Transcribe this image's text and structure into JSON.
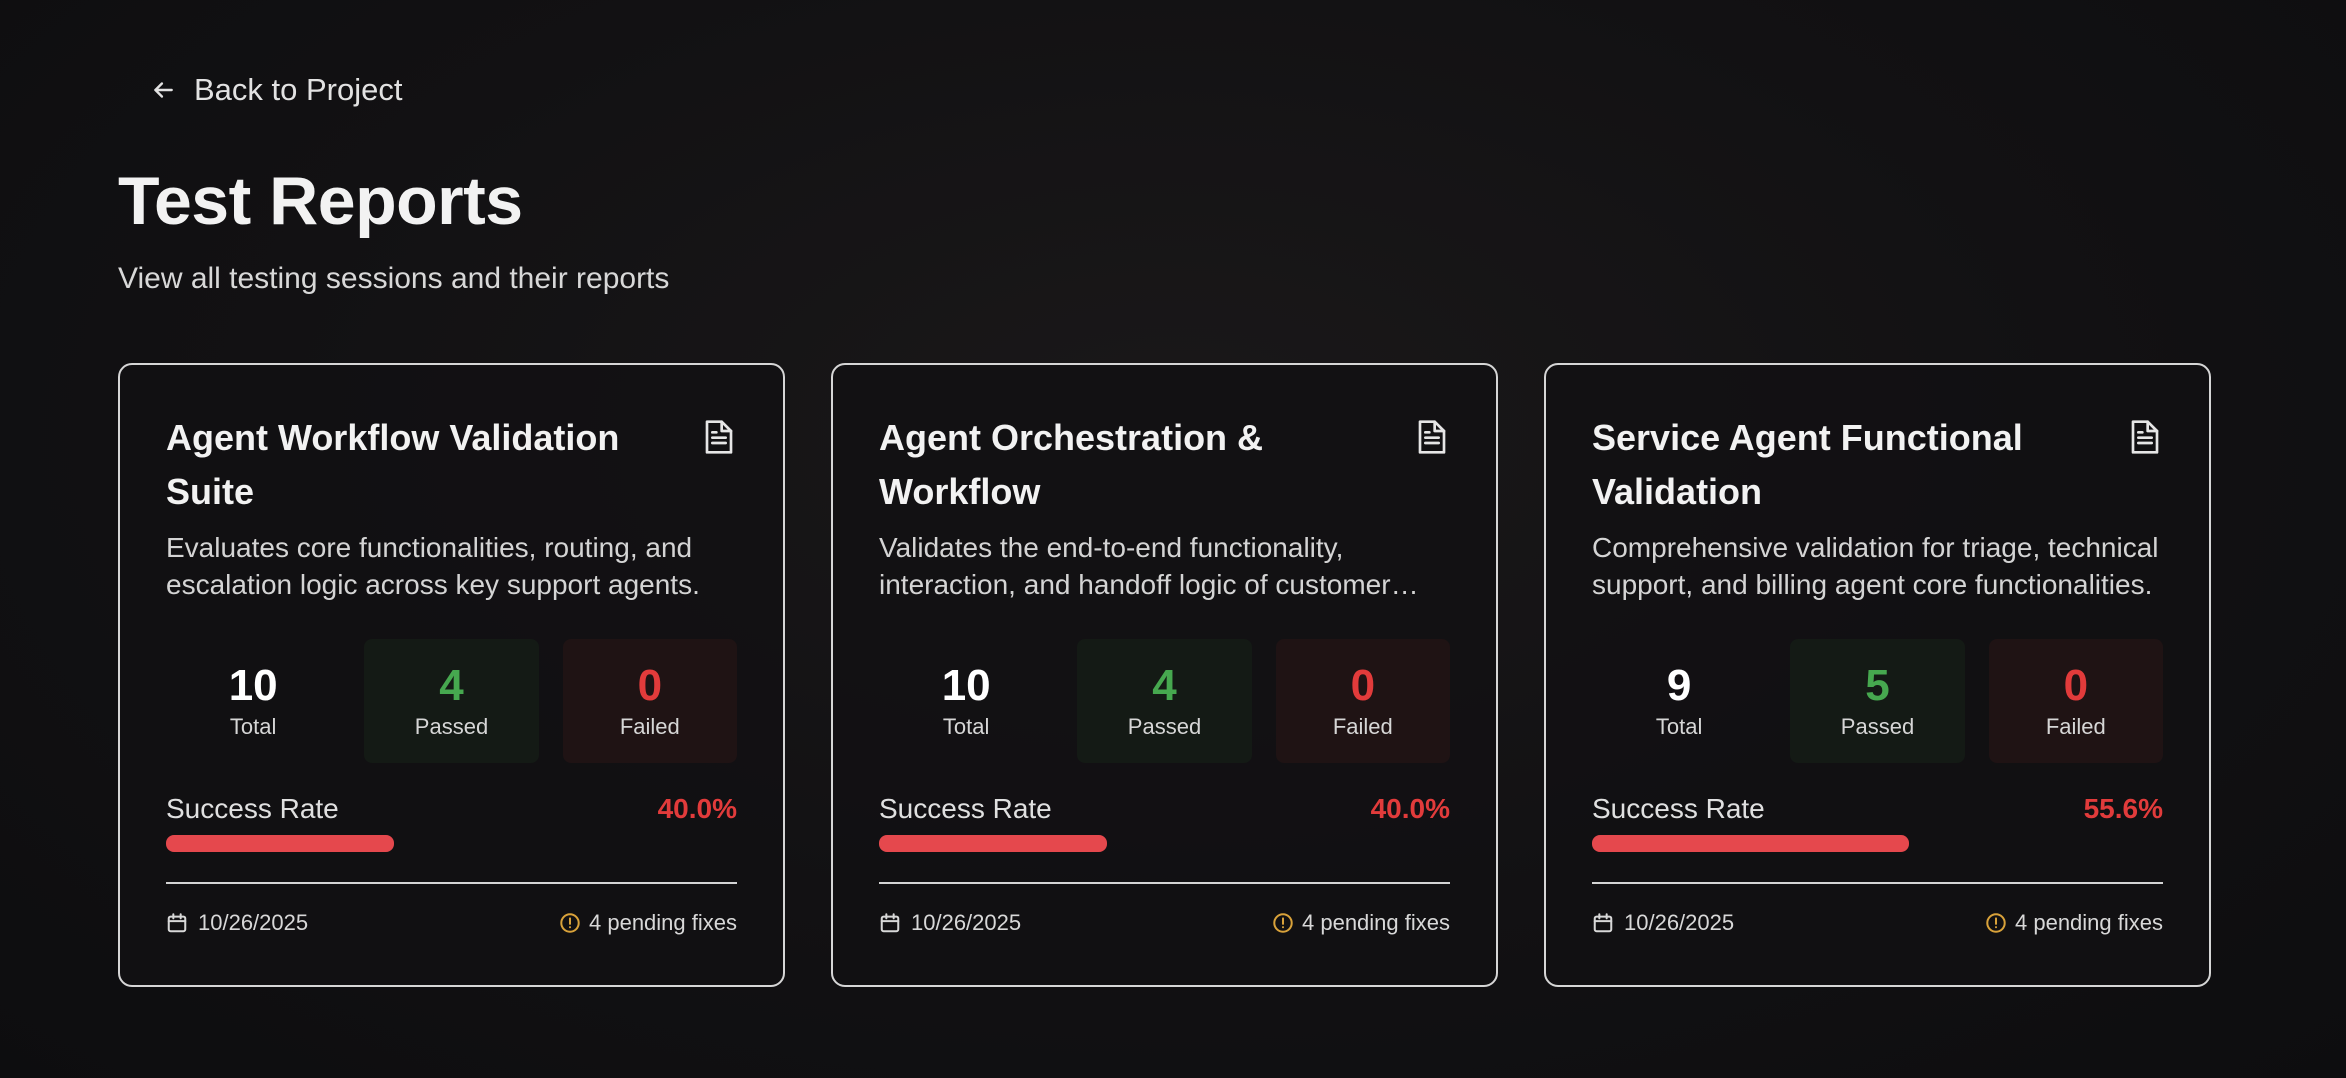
{
  "header": {
    "back_label": "Back to Project",
    "title": "Test Reports",
    "subtitle": "View all testing sessions and their reports"
  },
  "labels": {
    "total": "Total",
    "passed": "Passed",
    "failed": "Failed",
    "success_rate": "Success Rate"
  },
  "colors": {
    "passed": "#46a84f",
    "failed": "#e23b3b",
    "progress": "#e5484d",
    "pending_icon": "#d9a23a"
  },
  "icons": {
    "back": "arrow-left-icon",
    "report": "document-icon",
    "date": "calendar-icon",
    "pending": "alert-circle-icon"
  },
  "reports": [
    {
      "title": "Agent Workflow Validation Suite",
      "description": "Evaluates core functionalities, routing, and escalation logic across key support agents.",
      "total": "10",
      "passed": "4",
      "failed": "0",
      "success_rate": "40.0%",
      "success_fraction": 0.4,
      "date": "10/26/2025",
      "pending": "4 pending fixes"
    },
    {
      "title": "Agent Orchestration & Workflow",
      "description": "Validates the end-to-end functionality, interaction, and handoff logic of customer support agents.",
      "total": "10",
      "passed": "4",
      "failed": "0",
      "success_rate": "40.0%",
      "success_fraction": 0.4,
      "date": "10/26/2025",
      "pending": "4 pending fixes"
    },
    {
      "title": "Service Agent Functional Validation",
      "description": "Comprehensive validation for triage, technical support, and billing agent core functionalities.",
      "total": "9",
      "passed": "5",
      "failed": "0",
      "success_rate": "55.6%",
      "success_fraction": 0.556,
      "date": "10/26/2025",
      "pending": "4 pending fixes"
    }
  ]
}
